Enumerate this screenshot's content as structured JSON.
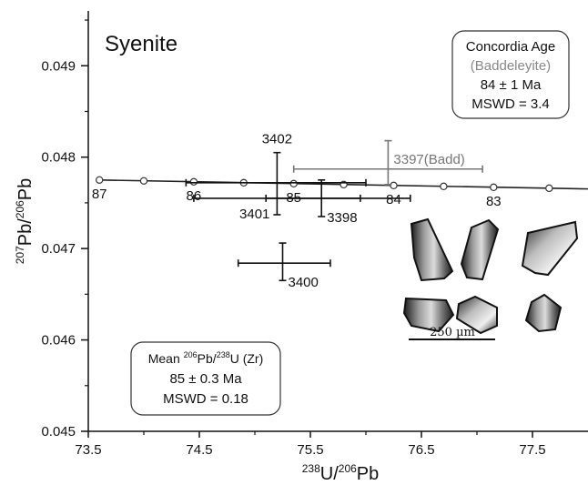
{
  "chart_data": {
    "type": "scatter",
    "title": "Syenite",
    "xlabel": {
      "sup": "238",
      "main": "U/",
      "sup2": "206",
      "main2": "Pb"
    },
    "ylabel": {
      "sup": "207",
      "main": "Pb/",
      "sup2": "206",
      "main2": "Pb"
    },
    "xlim": [
      73.5,
      78.0
    ],
    "ylim": [
      0.045,
      0.0496
    ],
    "x_ticks": [
      73.5,
      74.5,
      75.5,
      76.5,
      77.5
    ],
    "x_tick_labels": [
      "73.5",
      "74.5",
      "75.5",
      "76.5",
      "77.5"
    ],
    "y_ticks": [
      0.045,
      0.046,
      0.047,
      0.048,
      0.049
    ],
    "y_tick_labels": [
      "0.045",
      "0.046",
      "0.047",
      "0.048",
      "0.049"
    ],
    "grid": false,
    "concordia": {
      "x": [
        73.6,
        74.0,
        74.45,
        74.9,
        75.35,
        75.8,
        76.25,
        76.7,
        77.15,
        77.65
      ],
      "y": [
        0.04775,
        0.04774,
        0.04773,
        0.04772,
        0.04771,
        0.0477,
        0.04769,
        0.04768,
        0.04767,
        0.04766
      ],
      "labels": [
        {
          "text": "87",
          "x": 73.6,
          "y": 0.04775
        },
        {
          "text": "86",
          "x": 74.45,
          "y": 0.04773
        },
        {
          "text": "85",
          "x": 75.35,
          "y": 0.04771
        },
        {
          "text": "84",
          "x": 76.25,
          "y": 0.04769
        },
        {
          "text": "83",
          "x": 77.15,
          "y": 0.04767
        }
      ]
    },
    "points": [
      {
        "label": "3402",
        "x": 75.2,
        "y": 0.04772,
        "x_err": [
          74.38,
          76.0
        ],
        "y_err": [
          0.04737,
          0.04805
        ],
        "color": "#111111",
        "label_pos": "above"
      },
      {
        "label": "3401",
        "x": 75.2,
        "y": 0.04755,
        "x_err": [
          74.45,
          75.95
        ],
        "y_err": null,
        "color": "#111111",
        "label_pos": "below-left"
      },
      {
        "label": "3398",
        "x": 75.6,
        "y": 0.04755,
        "x_err": [
          75.1,
          76.4
        ],
        "y_err": [
          0.04735,
          0.04775
        ],
        "color": "#111111",
        "label_pos": "below-right"
      },
      {
        "label": "3397(Badd)",
        "x": 76.2,
        "y": 0.04787,
        "x_err": [
          75.35,
          77.05
        ],
        "y_err": [
          0.0477,
          0.04818
        ],
        "color": "#777777",
        "label_pos": "right"
      },
      {
        "label": "3400",
        "x": 75.25,
        "y": 0.04684,
        "x_err": [
          74.85,
          75.68
        ],
        "y_err": [
          0.04665,
          0.04706
        ],
        "color": "#111111",
        "label_pos": "below-right"
      }
    ],
    "annotations": {
      "concordia_box": {
        "title": "Concordia Age",
        "subtitle": "(Baddeleyite)",
        "age": "84 ± 1 Ma",
        "mswd": "MSWD  = 3.4"
      },
      "mean_box": {
        "pre": "Mean ",
        "sup1": "206",
        "mid": "Pb/",
        "sup2": "238",
        "post": "U (Zr)",
        "age": "85 ± 0.3 Ma",
        "mswd": "MSWD = 0.18"
      },
      "scale_bar": "250 µm"
    }
  },
  "colors": {
    "axis": "#111111",
    "badd": "#777777",
    "crystal_dark": "#1c1c1c",
    "crystal_light": "#d8d8d8"
  }
}
